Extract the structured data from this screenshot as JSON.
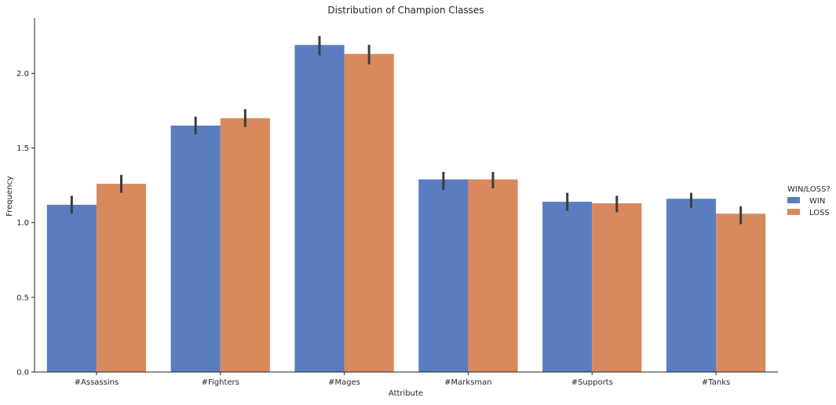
{
  "chart_data": {
    "type": "bar",
    "title": "Distribution of Champion Classes",
    "xlabel": "Attribute",
    "ylabel": "Frequency",
    "categories": [
      "#Assassins",
      "#Fighters",
      "#Mages",
      "#Marksman",
      "#Supports",
      "#Tanks"
    ],
    "series": [
      {
        "name": "WIN",
        "color": "#5a7dc0",
        "values": [
          1.12,
          1.65,
          2.19,
          1.29,
          1.14,
          1.16
        ],
        "err_low": [
          1.06,
          1.59,
          2.12,
          1.22,
          1.08,
          1.1
        ],
        "err_high": [
          1.18,
          1.71,
          2.25,
          1.34,
          1.2,
          1.2
        ]
      },
      {
        "name": "LOSS",
        "color": "#d8895d",
        "values": [
          1.26,
          1.7,
          2.13,
          1.29,
          1.13,
          1.06
        ],
        "err_low": [
          1.2,
          1.64,
          2.06,
          1.23,
          1.07,
          0.99
        ],
        "err_high": [
          1.32,
          1.76,
          2.19,
          1.34,
          1.18,
          1.11
        ]
      }
    ],
    "ylim": [
      0,
      2.37
    ],
    "yticks": [
      "0.0",
      "0.5",
      "1.0",
      "1.5",
      "2.0"
    ],
    "grid": false,
    "legend": {
      "title": "WIN/LOSS?",
      "placement": "right"
    }
  }
}
